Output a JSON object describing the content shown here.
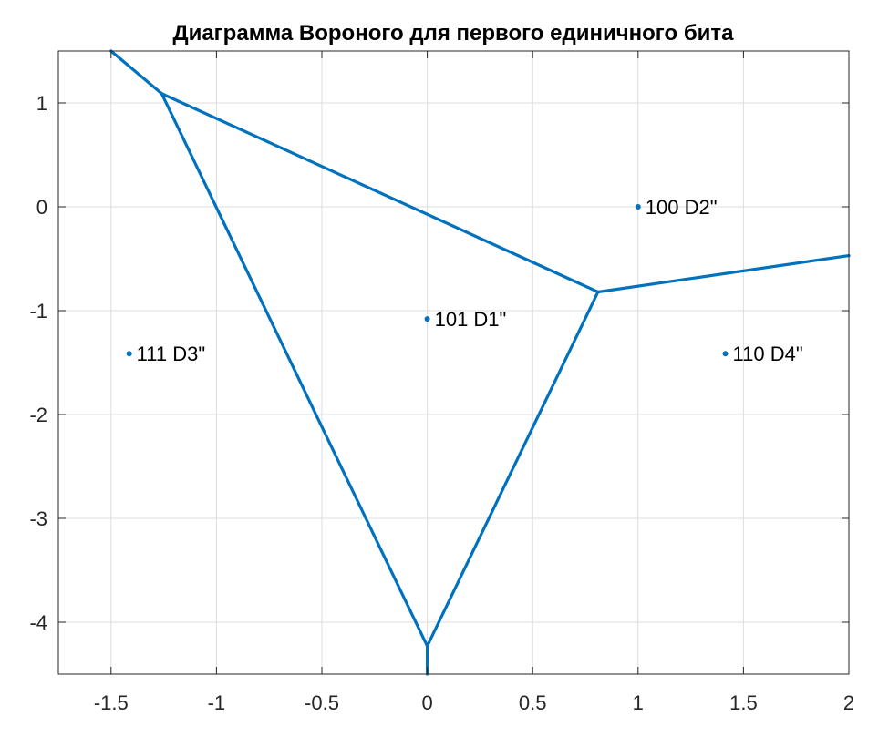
{
  "chart_data": {
    "type": "line",
    "title": "Диаграмма Вороного для первого единичного бита",
    "xlabel": "",
    "ylabel": "",
    "xlim": [
      -1.75,
      2
    ],
    "ylim": [
      -4.5,
      1.5
    ],
    "xticks": [
      -1.5,
      -1,
      -0.5,
      0,
      0.5,
      1,
      1.5,
      2
    ],
    "xtick_labels": [
      "-1.5",
      "-1",
      "-0.5",
      "0",
      "0.5",
      "1",
      "1.5",
      "2"
    ],
    "yticks": [
      1,
      0,
      -1,
      -2,
      -3,
      -4
    ],
    "ytick_labels": [
      "1",
      "0",
      "-1",
      "-2",
      "-3",
      "-4"
    ],
    "grid": true,
    "line_color": "#0072BD",
    "points": [
      {
        "x": 0,
        "y": -1.08,
        "label": "101 D1\""
      },
      {
        "x": 1,
        "y": 0,
        "label": "100 D2\""
      },
      {
        "x": -1.414,
        "y": -1.414,
        "label": "111 D3\""
      },
      {
        "x": 1.414,
        "y": -1.414,
        "label": "110 D4\""
      }
    ],
    "edges": [
      [
        [
          -1.5,
          1.5
        ],
        [
          -1.26,
          1.09
        ]
      ],
      [
        [
          -1.26,
          1.09
        ],
        [
          0.81,
          -0.82
        ]
      ],
      [
        [
          0.81,
          -0.82
        ],
        [
          2,
          -0.47
        ]
      ],
      [
        [
          -1.26,
          1.09
        ],
        [
          0,
          -4.23
        ]
      ],
      [
        [
          0.81,
          -0.82
        ],
        [
          0,
          -4.23
        ]
      ],
      [
        [
          0,
          -4.23
        ],
        [
          0,
          -4.5
        ]
      ]
    ]
  }
}
